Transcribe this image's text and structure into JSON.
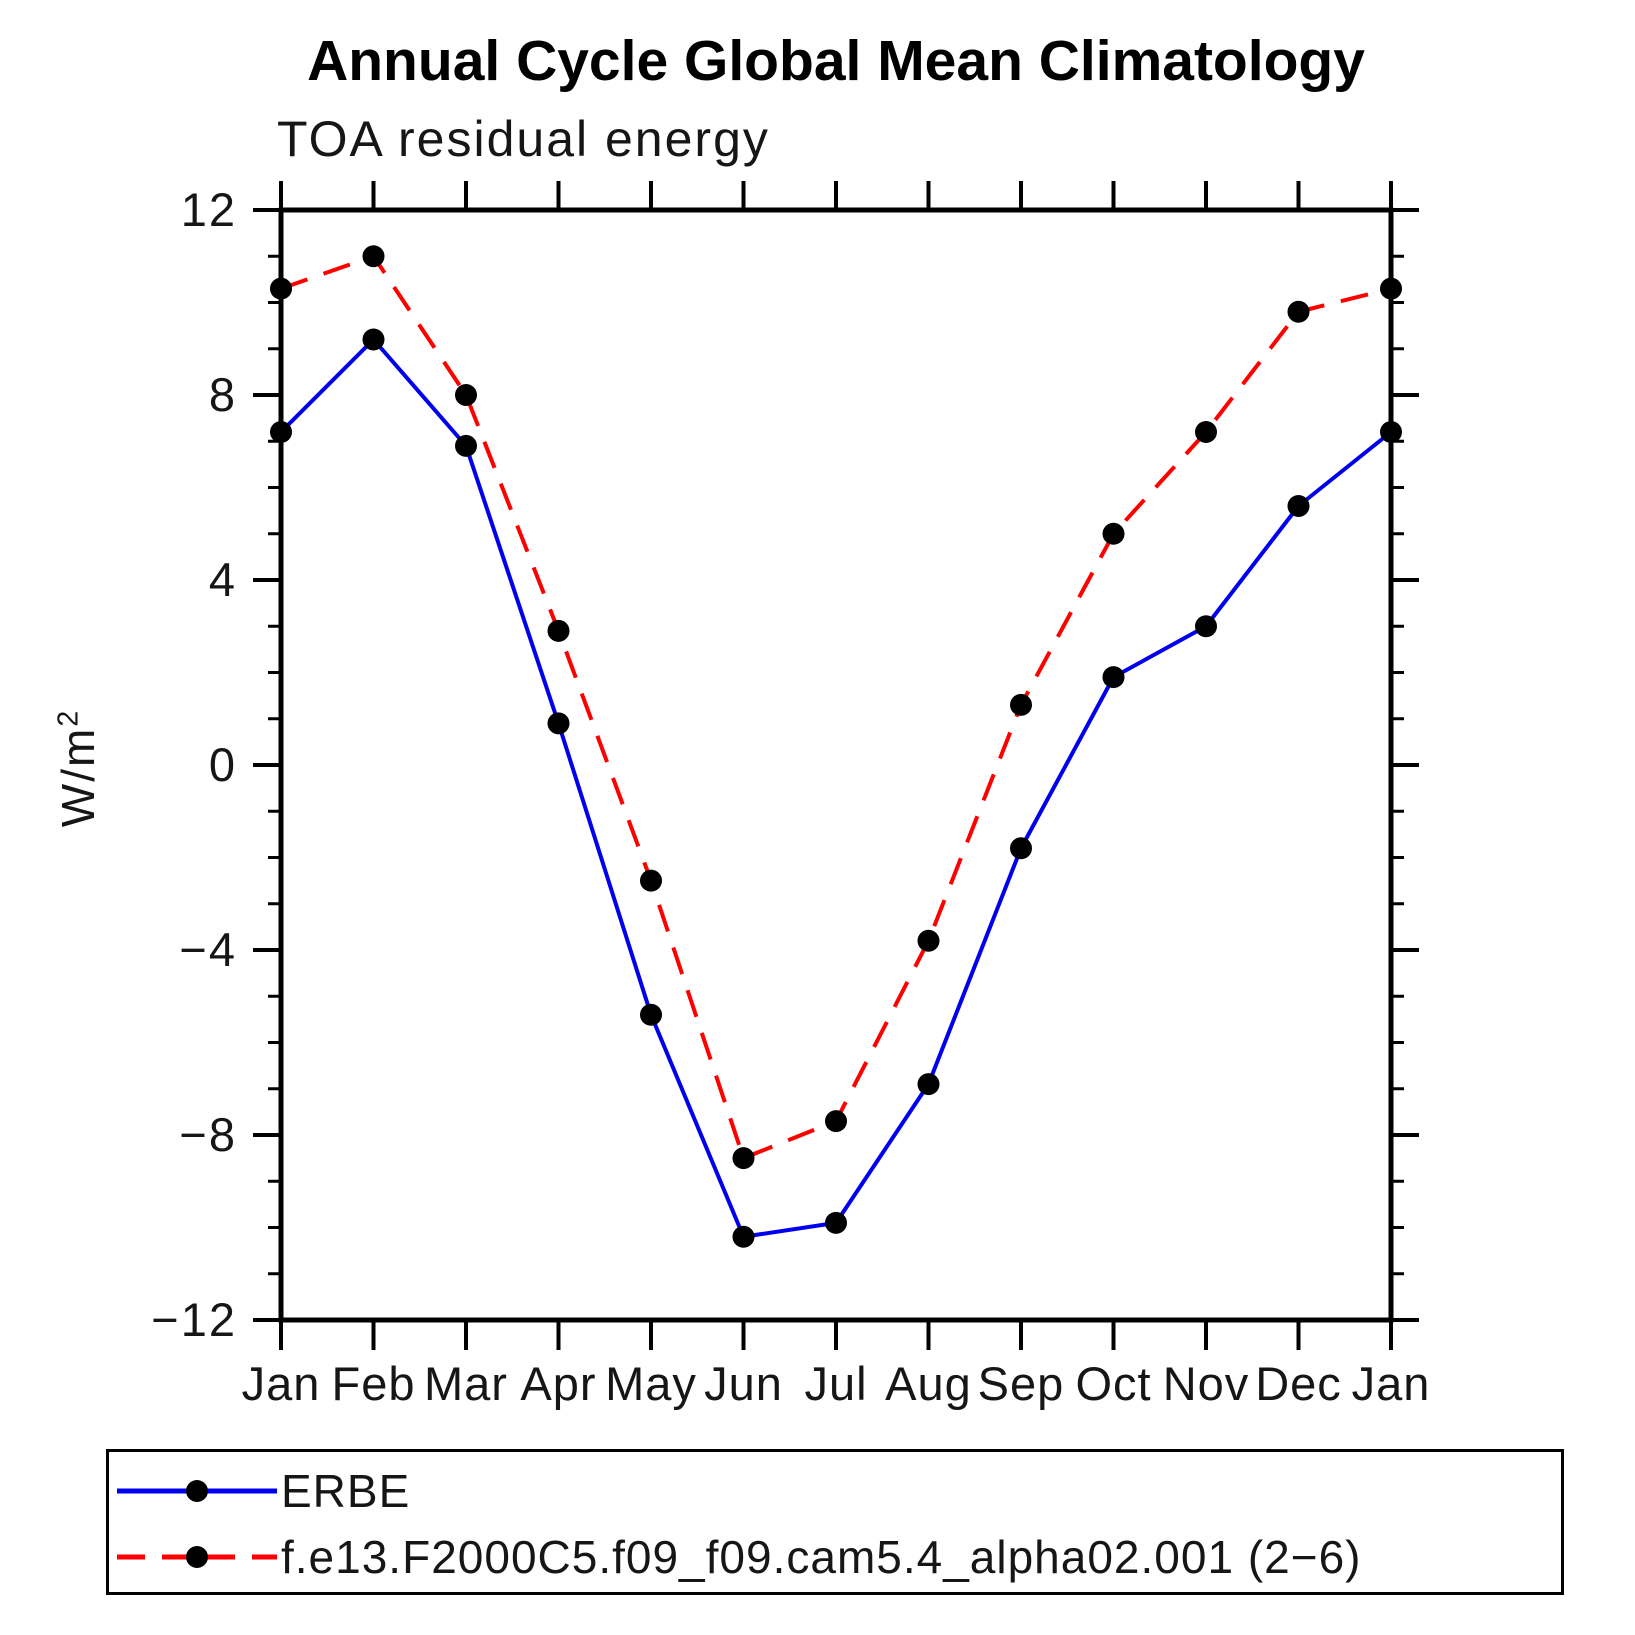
{
  "title": "Annual Cycle Global Mean Climatology",
  "subtitle": "TOA residual energy",
  "y_axis_title": {
    "base": "W/m",
    "exponent": "2"
  },
  "legend": {
    "entries": [
      {
        "label": "ERBE",
        "color": "#0000ee",
        "style": "solid",
        "marker_color": "#000000"
      },
      {
        "label": "f.e13.F2000C5.f09_f09.cam5.4_alpha02.001 (2−6)",
        "color": "#ff0000",
        "style": "dashed",
        "marker_color": "#000000"
      }
    ]
  },
  "chart_data": {
    "type": "line",
    "title": "Annual Cycle Global Mean Climatology",
    "subtitle": "TOA residual energy",
    "xlabel": "",
    "ylabel": "W/m2",
    "categories": [
      "Jan",
      "Feb",
      "Mar",
      "Apr",
      "May",
      "Jun",
      "Jul",
      "Aug",
      "Sep",
      "Oct",
      "Nov",
      "Dec",
      "Jan"
    ],
    "series": [
      {
        "name": "ERBE",
        "color": "#0000ee",
        "style": "solid",
        "values": [
          7.2,
          9.2,
          6.9,
          0.9,
          -5.4,
          -10.2,
          -9.9,
          -6.9,
          -1.8,
          1.9,
          3.0,
          5.6,
          7.2
        ]
      },
      {
        "name": "f.e13.F2000C5.f09_f09.cam5.4_alpha02.001 (2−6)",
        "color": "#ff0000",
        "style": "dashed",
        "values": [
          10.3,
          11.0,
          8.0,
          2.9,
          -2.5,
          -8.5,
          -7.7,
          -3.8,
          1.3,
          5.0,
          7.2,
          9.8,
          10.3
        ]
      }
    ],
    "marker": {
      "shape": "circle",
      "color": "#000000",
      "radius": 11
    },
    "ylim": [
      -12,
      12
    ],
    "ytick_major": [
      12,
      8,
      4,
      0,
      -4,
      -8,
      -12
    ],
    "ytick_labels": [
      "12",
      "8",
      "4",
      "0",
      "−4",
      "−8",
      "−12"
    ],
    "ytick_minor_step": 1,
    "grid": false,
    "legend_position": "bottom"
  }
}
